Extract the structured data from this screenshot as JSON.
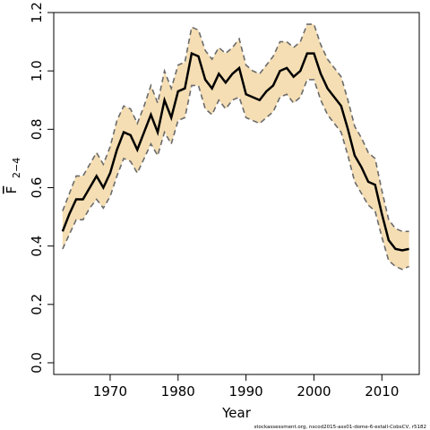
{
  "chart_data": {
    "type": "band-line",
    "x_label": "Year",
    "y_label": "F",
    "y_label_subscript": "2−4",
    "caption": "stockassessment.org, nscod2015-ass01-dome-6-estall-CobsCV, r5182",
    "x": [
      1963,
      1964,
      1965,
      1966,
      1967,
      1968,
      1969,
      1970,
      1971,
      1972,
      1973,
      1974,
      1975,
      1976,
      1977,
      1978,
      1979,
      1980,
      1981,
      1982,
      1983,
      1984,
      1985,
      1986,
      1987,
      1988,
      1989,
      1990,
      1991,
      1992,
      1993,
      1994,
      1995,
      1996,
      1997,
      1998,
      1999,
      2000,
      2001,
      2002,
      2003,
      2004,
      2005,
      2006,
      2007,
      2008,
      2009,
      2010,
      2011,
      2012,
      2013,
      2014
    ],
    "values": [
      0.45,
      0.51,
      0.56,
      0.56,
      0.6,
      0.64,
      0.6,
      0.65,
      0.73,
      0.79,
      0.78,
      0.73,
      0.79,
      0.85,
      0.79,
      0.9,
      0.84,
      0.93,
      0.94,
      1.06,
      1.05,
      0.97,
      0.94,
      0.99,
      0.96,
      0.99,
      1.01,
      0.92,
      0.91,
      0.9,
      0.93,
      0.95,
      1.0,
      1.01,
      0.98,
      1.0,
      1.06,
      1.06,
      0.99,
      0.94,
      0.91,
      0.88,
      0.8,
      0.71,
      0.67,
      0.62,
      0.61,
      0.51,
      0.42,
      0.39,
      0.385,
      0.39
    ],
    "lower": [
      0.39,
      0.44,
      0.49,
      0.49,
      0.53,
      0.56,
      0.53,
      0.57,
      0.64,
      0.7,
      0.69,
      0.65,
      0.7,
      0.75,
      0.71,
      0.79,
      0.75,
      0.83,
      0.84,
      0.95,
      0.95,
      0.87,
      0.85,
      0.9,
      0.87,
      0.9,
      0.91,
      0.84,
      0.83,
      0.82,
      0.84,
      0.86,
      0.91,
      0.92,
      0.89,
      0.91,
      0.97,
      0.97,
      0.9,
      0.85,
      0.82,
      0.79,
      0.71,
      0.62,
      0.58,
      0.54,
      0.52,
      0.43,
      0.35,
      0.33,
      0.32,
      0.33
    ],
    "upper": [
      0.52,
      0.58,
      0.64,
      0.64,
      0.68,
      0.72,
      0.68,
      0.74,
      0.83,
      0.88,
      0.87,
      0.82,
      0.88,
      0.95,
      0.89,
      1.0,
      0.94,
      1.02,
      1.03,
      1.15,
      1.14,
      1.07,
      1.04,
      1.08,
      1.06,
      1.08,
      1.11,
      1.02,
      1.0,
      0.99,
      1.02,
      1.05,
      1.1,
      1.1,
      1.08,
      1.1,
      1.16,
      1.16,
      1.09,
      1.04,
      1.01,
      0.98,
      0.9,
      0.81,
      0.77,
      0.72,
      0.7,
      0.59,
      0.49,
      0.46,
      0.45,
      0.45
    ],
    "color": "#000000",
    "band_color": "#f5deb3",
    "bound_color": "#6b6b6b",
    "xlim": [
      1961.7,
      2015.5
    ],
    "xticks": [
      1970,
      1980,
      1990,
      2000,
      2010
    ],
    "ylim": [
      -0.04,
      1.2
    ],
    "yticks": [
      {
        "value": 0,
        "label": "0.0"
      },
      0.2,
      0.4,
      0.6,
      0.8,
      {
        "value": 1,
        "label": "1.0"
      },
      1.2
    ]
  }
}
